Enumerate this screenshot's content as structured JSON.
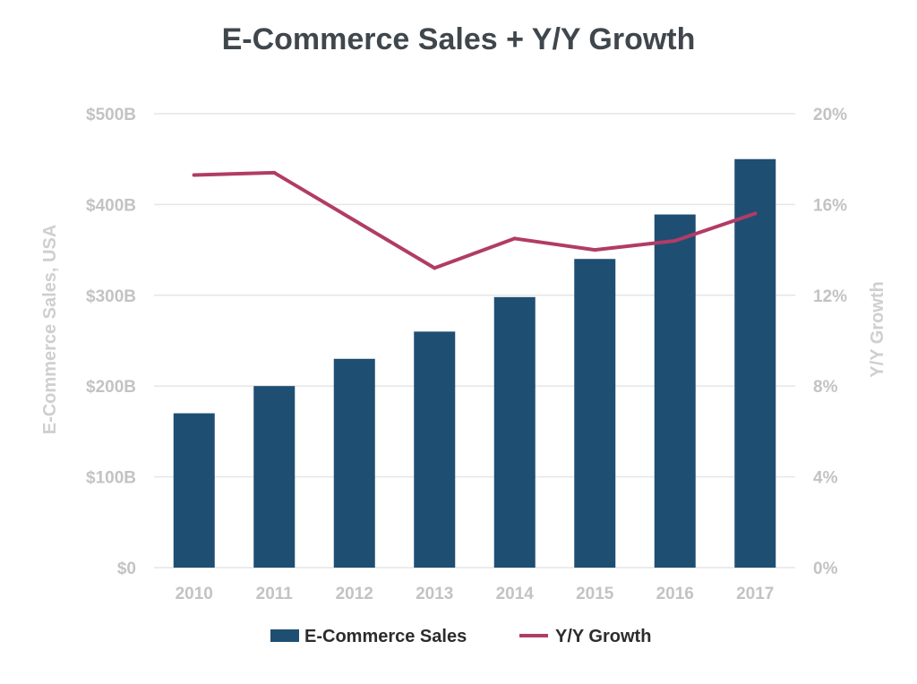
{
  "chart_data": {
    "type": "bar",
    "title": "E-Commerce Sales + Y/Y Growth",
    "categories": [
      "2010",
      "2011",
      "2012",
      "2013",
      "2014",
      "2015",
      "2016",
      "2017"
    ],
    "ylabel": "E-Commerce Sales, USA",
    "ylabel_right": "Y/Y Growth",
    "ylim": [
      0,
      500
    ],
    "ylim_right": [
      0,
      20
    ],
    "yticks": [
      {
        "value": 0,
        "label": "$0"
      },
      {
        "value": 100,
        "label": "$100B"
      },
      {
        "value": 200,
        "label": "$200B"
      },
      {
        "value": 300,
        "label": "$300B"
      },
      {
        "value": 400,
        "label": "$400B"
      },
      {
        "value": 500,
        "label": "$500B"
      }
    ],
    "yticks_right": [
      {
        "value": 0,
        "label": "0%"
      },
      {
        "value": 4,
        "label": "4%"
      },
      {
        "value": 8,
        "label": "8%"
      },
      {
        "value": 12,
        "label": "12%"
      },
      {
        "value": 16,
        "label": "16%"
      },
      {
        "value": 20,
        "label": "20%"
      }
    ],
    "series": [
      {
        "name": "E-Commerce Sales",
        "type": "bar",
        "axis": "left",
        "color": "#1f4e73",
        "values": [
          170,
          200,
          230,
          260,
          298,
          340,
          389,
          450
        ]
      },
      {
        "name": "Y/Y Growth",
        "type": "line",
        "axis": "right",
        "color": "#b13c66",
        "values": [
          17.3,
          17.4,
          15.3,
          13.2,
          14.5,
          14.0,
          14.4,
          15.6
        ]
      }
    ],
    "grid": true,
    "legend": "bottom"
  }
}
